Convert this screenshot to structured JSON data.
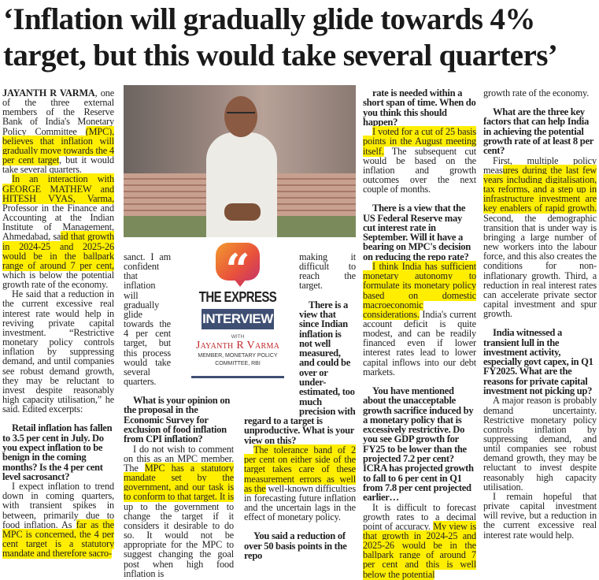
{
  "headline": {
    "line1": "‘Inflation will gradually glide towards 4%",
    "line2": "target, but this would take several quarters’"
  },
  "logo": {
    "quote_mark": "“",
    "brand": "THE EXPRESS",
    "label": "INTERVIEW",
    "with": "WITH",
    "name": "Jayanth R Varma",
    "role_line1": "MEMBER, MONETARY POLICY",
    "role_line2": "COMMITTEE, RBI",
    "accent_color": "#e8513b",
    "label_bg": "#3f4f73"
  },
  "highlight_color": "#ffee00",
  "columns": [
    [
      {
        "type": "p",
        "noindent": true,
        "segs": [
          {
            "t": "JAYANTH R VARMA",
            "b": true
          },
          {
            "t": ", one of the three external members of the Reserve Bank of India's Monetary Policy Committee "
          },
          {
            "t": "(MPC), believes that inflation will gradually move towards the 4 per cent target",
            "h": true
          },
          {
            "t": ", but it would take several quarters."
          }
        ]
      },
      {
        "type": "p",
        "segs": [
          {
            "t": "In an interaction with GEORGE MATHEW and HITESH VYAS, Varma,",
            "h": true
          },
          {
            "t": " Professor in the Finance and Accounting at the Indian Institute of Management, Ahmedabad, sa"
          },
          {
            "t": "id that growth in 2024-25 and 2025-26 would be in the ballpark range of around 7 per cent,",
            "h": true
          },
          {
            "t": " which is below the potential growth rate of the economy."
          }
        ]
      },
      {
        "type": "p",
        "segs": [
          {
            "t": "He said that a reduction in the current excessive real interest rate would help in reviving private capital investment. “Restrictive monetary policy controls inflation by suppressing demand, and until companies see robust demand growth, they may be reluctant to invest despite reasonably high capacity utilisation,” he said. Edited excerpts:"
          }
        ]
      },
      {
        "type": "q",
        "segs": [
          {
            "t": "Retail inflation has fallen to 3.5 per cent in July. Do you expect inflation to be benign in the coming months? Is the 4 per cent level sacrosanct?"
          }
        ]
      },
      {
        "type": "p",
        "segs": [
          {
            "t": "I expect inflation to trend down in coming quarters, with transient spikes in between, primarily due to food inflation. As "
          },
          {
            "t": "far as the MPC is concerned, the 4 per cent target is a statutory mandate and therefore sacro-",
            "h": true
          }
        ]
      }
    ],
    [
      {
        "type": "p",
        "noindent": true,
        "segs": [
          {
            "t": "sanct. I am confident that inflation will gradually glide towards the 4 per cent target, but this process would take several quarters."
          }
        ]
      },
      {
        "type": "q",
        "segs": [
          {
            "t": "What is your opinion on the proposal in the Economic Survey for exclusion of food inflation from CPI inflation?"
          }
        ]
      },
      {
        "type": "p",
        "segs": [
          {
            "t": "I do not wish to comment on this as an MPC member. The "
          },
          {
            "t": "MPC has a statutory mandate set by the government, and our task is to conform to that target. It is",
            "h": true
          },
          {
            "t": " up to the government to change the target if it considers it desirable to do so. It would not be appropriate for the MPC to suggest changing the goal post when high food inflation is"
          }
        ]
      }
    ],
    [
      {
        "type": "p",
        "noindent": true,
        "segs": [
          {
            "t": "making it difficult to reach the target."
          }
        ]
      },
      {
        "type": "q",
        "segs": [
          {
            "t": "There is a view that since Indian inflation is not well measured, and could be over or under-estimated, too much precision with regard to a target is unproductive. What is your view on this?"
          }
        ]
      },
      {
        "type": "p",
        "segs": [
          {
            "t": "The tolerance band of 2 per cent on either side of the target takes care of these measurement errors as well as the",
            "h": true
          },
          {
            "t": " well-known difficulties in forecasting future inflation and the uncertain lags in the effect of monetary policy."
          }
        ]
      },
      {
        "type": "q",
        "segs": [
          {
            "t": "You said a reduction of over 50 basis points in the repo"
          }
        ]
      }
    ],
    [
      {
        "type": "q",
        "first": true,
        "segs": [
          {
            "t": "rate is needed within a short span of time. When do you think this should happen?"
          }
        ]
      },
      {
        "type": "p",
        "segs": [
          {
            "t": "I voted for a cut of 25 basis points in the August meeting itself.",
            "h": true
          },
          {
            "t": " The subsequent cut would be based on the inflation and growth outcomes over the next couple of months."
          }
        ]
      },
      {
        "type": "q",
        "segs": [
          {
            "t": "There is a view that the US Federal Reserve may cut interest rate in September. Will it have a bearing on MPC's decision on reducing the repo rate?"
          }
        ]
      },
      {
        "type": "p",
        "segs": [
          {
            "t": "I think India has sufficient monetary autonomy to formulate its monetary policy based on domestic macroeconomic considerations.",
            "h": true
          },
          {
            "t": " India's current account deficit is quite modest, and can be readily financed even if lower interest rates lead to lower capital inflows into our debt markets."
          }
        ]
      },
      {
        "type": "q",
        "segs": [
          {
            "t": "You have mentioned about the unacceptable growth sacrifice induced by a monetary policy that is excessively restrictive. Do you see GDP growth for FY25 to be lower than the projected 7.2 per cent? ICRA has projected growth to fall to 6 per cent in Q1 from 7.8 per cent projected earlier…"
          }
        ]
      },
      {
        "type": "p",
        "segs": [
          {
            "t": "It is difficult to forecast growth rates to a decimal point of accuracy. "
          },
          {
            "t": "My view is that growth in 2024-25 and 2025-26 would be in the ballpark range of around 7 per cent and this is well below the potential",
            "h": true
          }
        ]
      }
    ],
    [
      {
        "type": "p",
        "noindent": true,
        "segs": [
          {
            "t": "growth rate of the economy."
          }
        ]
      },
      {
        "type": "q",
        "segs": [
          {
            "t": "What are the three key factors that can help India in achieving the potential growth rate of at least 8 per cent?"
          }
        ]
      },
      {
        "type": "p",
        "segs": [
          {
            "t": "First, multiple policy meas"
          },
          {
            "t": "ures during the last few years including digitalisation, tax reforms, and a step up in infrastructure investment are key enablers of rapid growth.",
            "h": true
          },
          {
            "t": " Second, the demographic transition that is under way is bringing a large number of new workers into the labour force, and this also creates the conditions for non-inflationary growth. Third, a reduction in real interest rates can accelerate private sector capital investment and spur growth."
          }
        ]
      },
      {
        "type": "q",
        "segs": [
          {
            "t": "India witnessed a transient lull in the investment activity, especially govt capex, in Q1 FY2025. What are the reasons for private capital investment not picking up?"
          }
        ]
      },
      {
        "type": "p",
        "segs": [
          {
            "t": "A major reason is probably demand uncertainty. Restrictive monetary policy controls inflation by suppressing demand, and until companies see robust demand growth, they may be reluctant to invest despite reasonably high capacity utilisation."
          }
        ]
      },
      {
        "type": "p",
        "segs": [
          {
            "t": "I remain hopeful that private capital investment will revive, but a reduction in the current excessive real interest rate would help."
          }
        ]
      }
    ]
  ]
}
